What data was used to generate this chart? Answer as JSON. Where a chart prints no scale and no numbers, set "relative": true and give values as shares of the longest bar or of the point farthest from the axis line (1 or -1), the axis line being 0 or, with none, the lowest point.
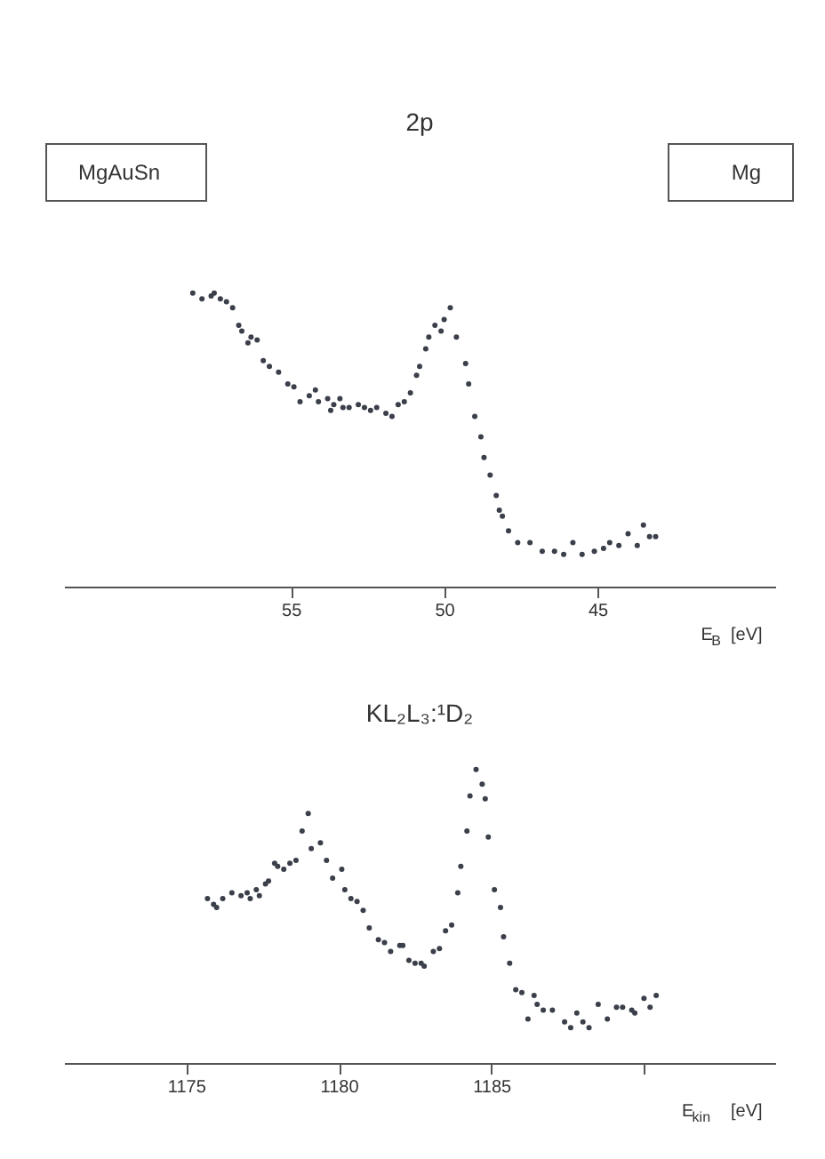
{
  "chart_data": [
    {
      "type": "scatter",
      "title": "2p",
      "xlabel": "E$_{B}$ [eV]",
      "relative": true,
      "marker": "circle",
      "grid": false,
      "tick_labels": "x",
      "annotations": [
        "MgAuSn",
        "Mg"
      ],
      "xlim": [
        62.4,
        39.2
      ],
      "xticks": [
        55,
        50,
        45
      ],
      "x": [
        58.2,
        57.9,
        57.6,
        57.5,
        57.3,
        57.1,
        56.9,
        56.7,
        56.6,
        56.4,
        56.3,
        56.1,
        55.9,
        55.7,
        55.4,
        55.1,
        54.9,
        54.7,
        54.4,
        54.2,
        54.1,
        53.8,
        53.7,
        53.6,
        53.4,
        53.3,
        53.1,
        52.8,
        52.6,
        52.4,
        52.2,
        51.9,
        51.7,
        51.5,
        51.3,
        51.1,
        50.9,
        50.8,
        50.6,
        50.5,
        50.3,
        50.1,
        50.0,
        49.8,
        49.6,
        49.3,
        49.2,
        49.0,
        48.8,
        48.7,
        48.5,
        48.3,
        48.2,
        48.1,
        47.9,
        47.6,
        47.2,
        46.8,
        46.4,
        46.1,
        45.8,
        45.5,
        45.1,
        44.8,
        44.6,
        44.3,
        44.0,
        43.7,
        43.5,
        43.3,
        43.1
      ],
      "series": [
        {
          "color": "#3a3f4a",
          "values": [
            1.0,
            0.98,
            0.99,
            1.0,
            0.98,
            0.97,
            0.95,
            0.89,
            0.87,
            0.83,
            0.85,
            0.84,
            0.77,
            0.75,
            0.73,
            0.69,
            0.68,
            0.63,
            0.65,
            0.67,
            0.63,
            0.64,
            0.6,
            0.62,
            0.64,
            0.61,
            0.61,
            0.62,
            0.61,
            0.6,
            0.61,
            0.59,
            0.58,
            0.62,
            0.63,
            0.66,
            0.72,
            0.75,
            0.81,
            0.85,
            0.89,
            0.87,
            0.91,
            0.95,
            0.85,
            0.76,
            0.69,
            0.58,
            0.51,
            0.44,
            0.38,
            0.31,
            0.26,
            0.24,
            0.19,
            0.15,
            0.15,
            0.12,
            0.12,
            0.11,
            0.15,
            0.11,
            0.12,
            0.13,
            0.15,
            0.14,
            0.18,
            0.14,
            0.21,
            0.17,
            0.17
          ]
        }
      ]
    },
    {
      "type": "scatter",
      "title": "KL₂L₃:¹D₂",
      "xlabel": "E$_{kin}$ [eV]",
      "relative": true,
      "marker": "circle",
      "grid": false,
      "tick_labels": "x",
      "xlim": [
        1171,
        1194.3
      ],
      "xticks": [
        1175,
        1180,
        1185,
        {
          "value": 1190,
          "label": null
        }
      ],
      "x": [
        1175.7,
        1175.9,
        1176.0,
        1176.2,
        1176.5,
        1176.8,
        1177.0,
        1177.1,
        1177.3,
        1177.4,
        1177.6,
        1177.7,
        1177.9,
        1178.0,
        1178.2,
        1178.4,
        1178.6,
        1178.8,
        1179.0,
        1179.1,
        1179.4,
        1179.6,
        1179.8,
        1180.1,
        1180.2,
        1180.4,
        1180.6,
        1180.8,
        1181.0,
        1181.3,
        1181.5,
        1181.7,
        1182.0,
        1182.1,
        1182.3,
        1182.5,
        1182.7,
        1182.8,
        1183.1,
        1183.3,
        1183.5,
        1183.7,
        1183.9,
        1184.0,
        1184.2,
        1184.3,
        1184.5,
        1184.7,
        1184.8,
        1184.9,
        1185.1,
        1185.3,
        1185.4,
        1185.6,
        1185.8,
        1186.0,
        1186.2,
        1186.4,
        1186.5,
        1186.7,
        1187.0,
        1187.4,
        1187.6,
        1187.8,
        1188.0,
        1188.2,
        1188.5,
        1188.8,
        1189.1,
        1189.3,
        1189.6,
        1189.7,
        1190.0,
        1190.2,
        1190.4
      ],
      "series": [
        {
          "color": "#3a3f4a",
          "values": [
            0.56,
            0.54,
            0.53,
            0.56,
            0.58,
            0.57,
            0.58,
            0.56,
            0.59,
            0.57,
            0.61,
            0.62,
            0.68,
            0.67,
            0.66,
            0.68,
            0.69,
            0.79,
            0.85,
            0.73,
            0.75,
            0.69,
            0.63,
            0.66,
            0.59,
            0.56,
            0.55,
            0.52,
            0.46,
            0.42,
            0.41,
            0.38,
            0.4,
            0.4,
            0.35,
            0.34,
            0.34,
            0.33,
            0.38,
            0.39,
            0.45,
            0.47,
            0.58,
            0.67,
            0.79,
            0.91,
            1.0,
            0.95,
            0.9,
            0.77,
            0.59,
            0.53,
            0.43,
            0.34,
            0.25,
            0.24,
            0.15,
            0.23,
            0.2,
            0.18,
            0.18,
            0.14,
            0.12,
            0.17,
            0.14,
            0.12,
            0.2,
            0.15,
            0.19,
            0.19,
            0.18,
            0.17,
            0.22,
            0.19,
            0.23
          ]
        }
      ]
    }
  ]
}
